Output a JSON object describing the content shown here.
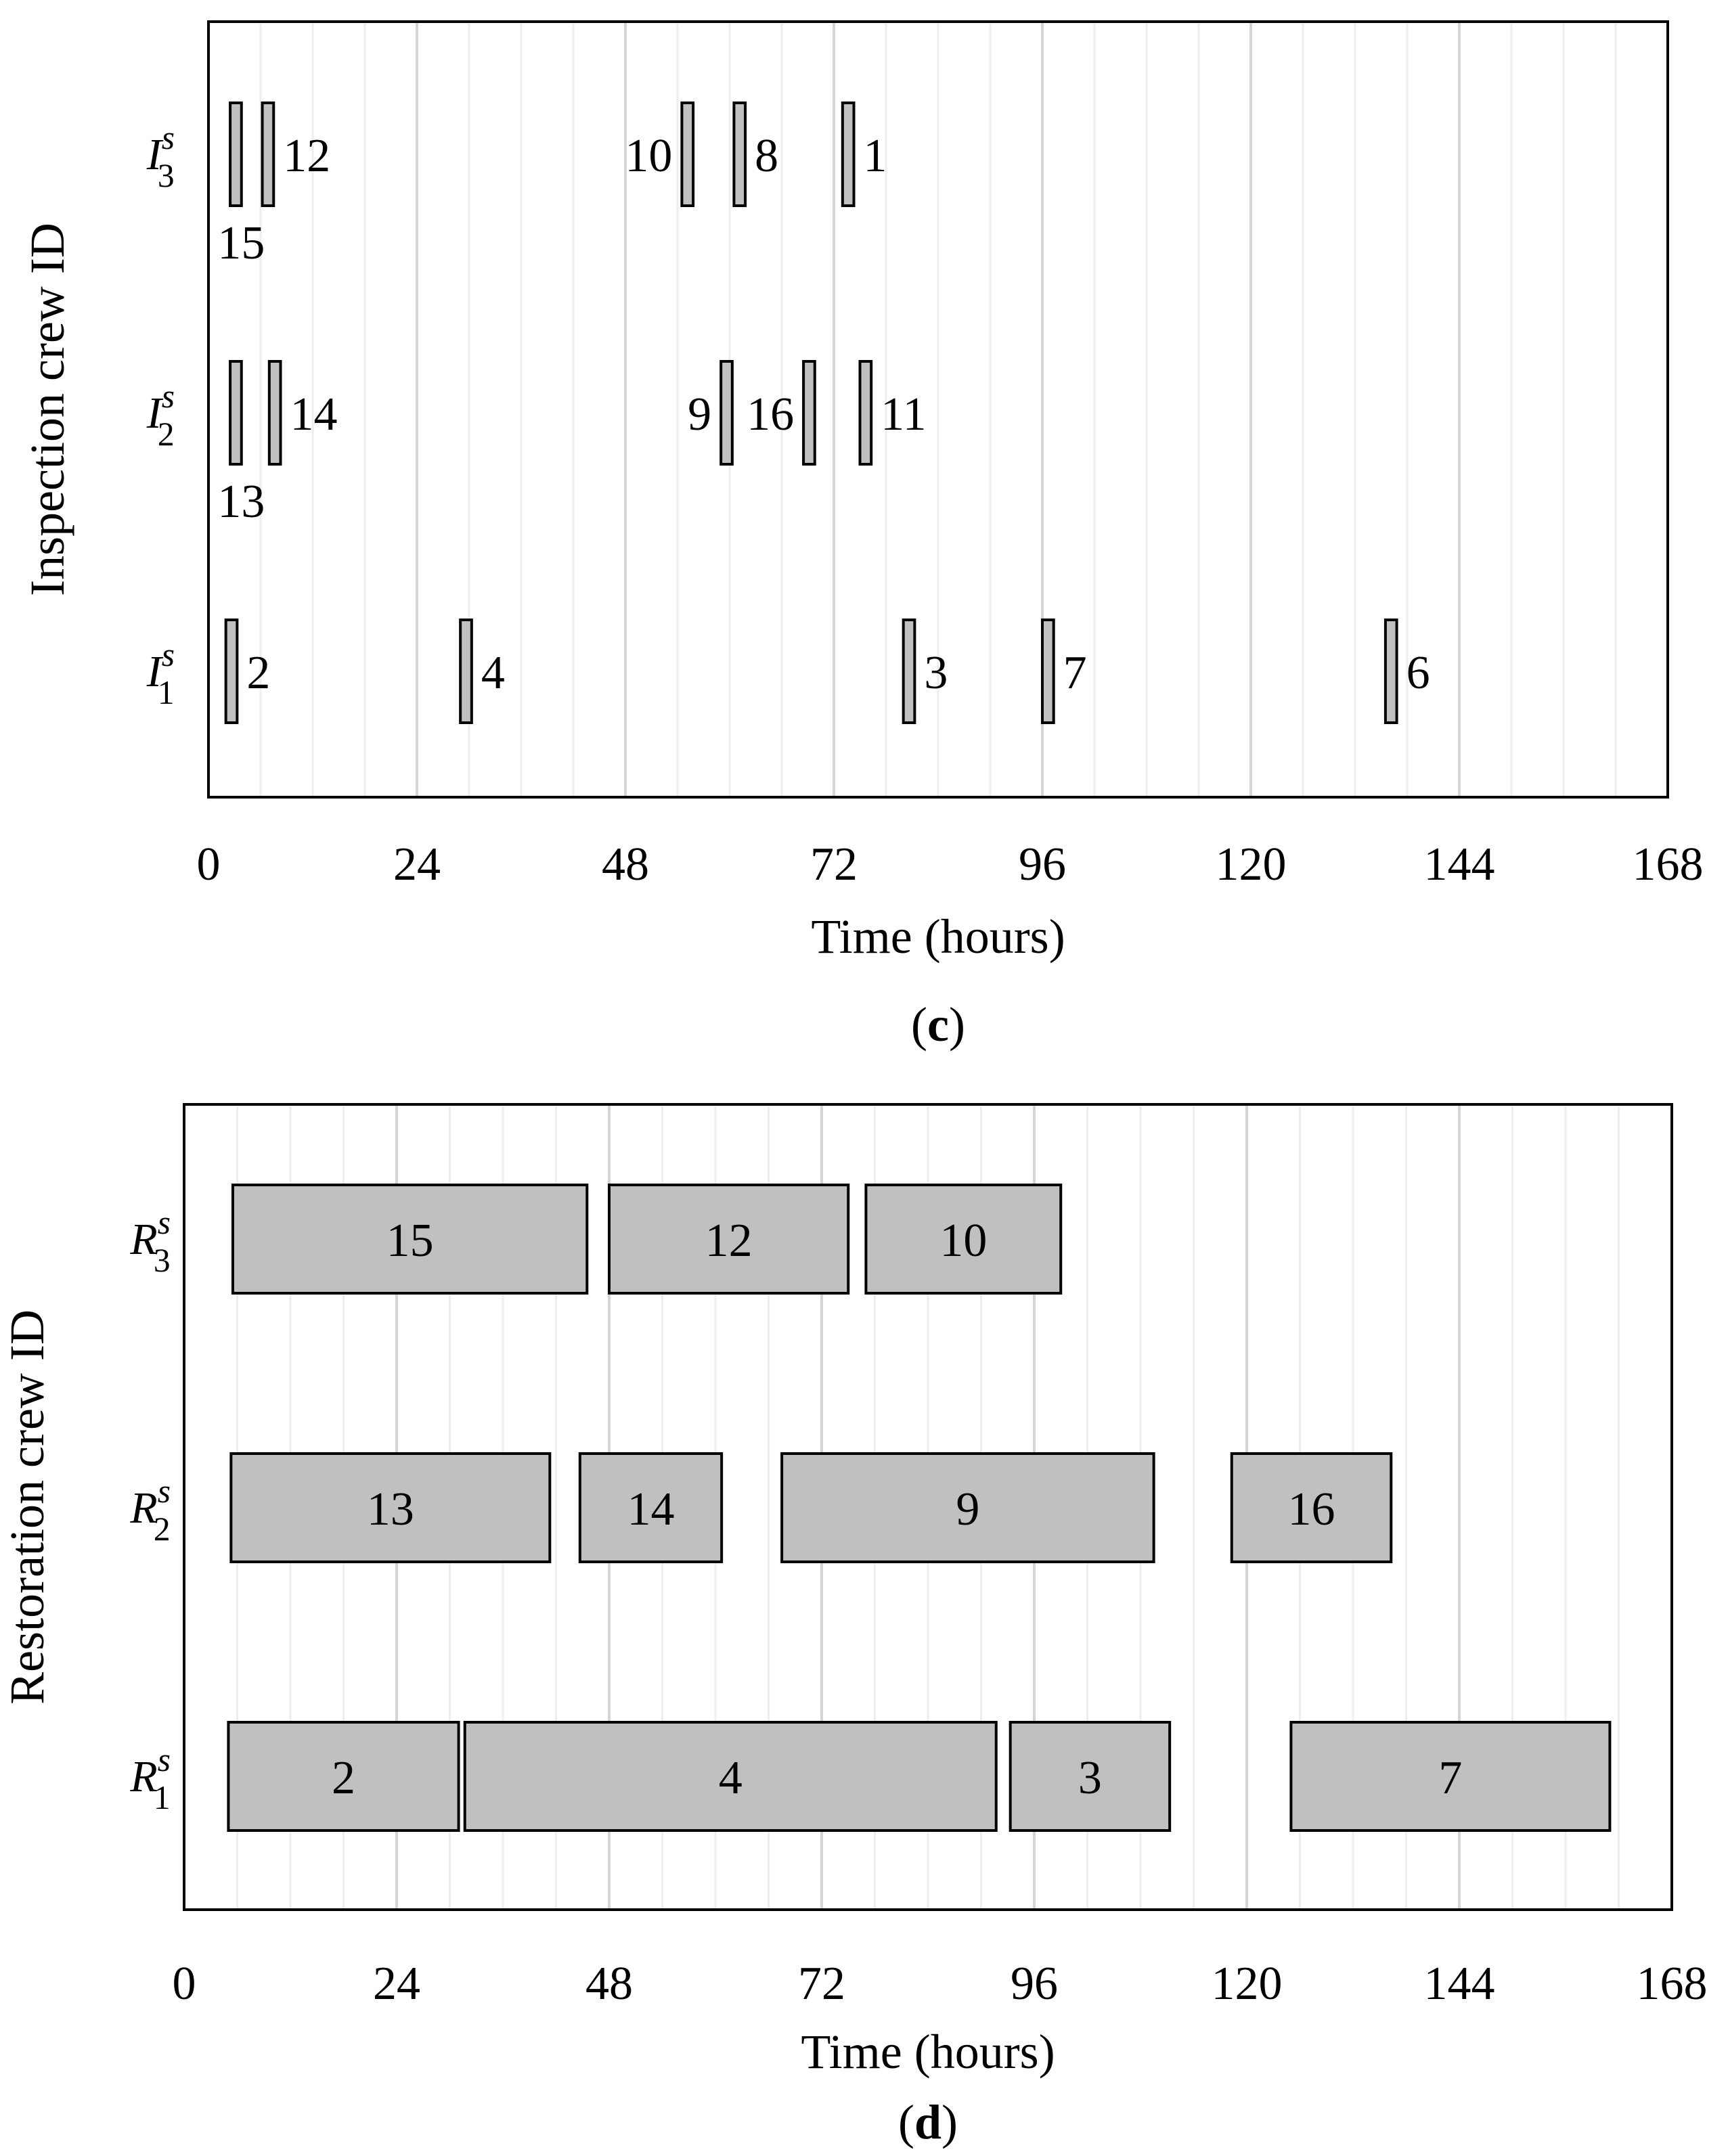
{
  "colors": {
    "bar_fill": "#c0c0c0",
    "bar_stroke": "#000000",
    "grid_major": "#d4d4d4",
    "grid_minor": "#eeeeee",
    "frame": "#000000"
  },
  "chart_data": [
    {
      "id": "c",
      "type": "gantt",
      "panel_label": "c",
      "xlabel": "Time (hours)",
      "ylabel": "Inspection crew ID",
      "xlim": [
        0,
        168
      ],
      "xticks": [
        "0",
        "24",
        "48",
        "72",
        "96",
        "120",
        "144",
        "168"
      ],
      "major_grid_step": 24,
      "minor_grid_step": 6,
      "crews": [
        {
          "base": "I",
          "sub": "3",
          "sup": "s",
          "tasks": [
            {
              "id": "15",
              "start": 2.5,
              "end": 3.8,
              "label_pos": "below"
            },
            {
              "id": "12",
              "start": 6.2,
              "end": 7.5,
              "label_pos": "right"
            },
            {
              "id": "10",
              "start": 54.5,
              "end": 55.8,
              "label_pos": "left"
            },
            {
              "id": "8",
              "start": 60.5,
              "end": 61.8,
              "label_pos": "right"
            },
            {
              "id": "1",
              "start": 73.0,
              "end": 74.3,
              "label_pos": "right"
            }
          ]
        },
        {
          "base": "I",
          "sub": "2",
          "sup": "s",
          "tasks": [
            {
              "id": "13",
              "start": 2.5,
              "end": 3.8,
              "label_pos": "below"
            },
            {
              "id": "14",
              "start": 7.0,
              "end": 8.3,
              "label_pos": "right"
            },
            {
              "id": "9",
              "start": 59.0,
              "end": 60.3,
              "label_pos": "left"
            },
            {
              "id": "16",
              "start": 68.5,
              "end": 69.8,
              "label_pos": "left"
            },
            {
              "id": "11",
              "start": 75.0,
              "end": 76.3,
              "label_pos": "right"
            }
          ]
        },
        {
          "base": "I",
          "sub": "1",
          "sup": "s",
          "tasks": [
            {
              "id": "2",
              "start": 2.0,
              "end": 3.3,
              "label_pos": "right"
            },
            {
              "id": "4",
              "start": 29.0,
              "end": 30.3,
              "label_pos": "right"
            },
            {
              "id": "3",
              "start": 80.0,
              "end": 81.3,
              "label_pos": "right"
            },
            {
              "id": "7",
              "start": 96.0,
              "end": 97.3,
              "label_pos": "right"
            },
            {
              "id": "6",
              "start": 135.5,
              "end": 136.8,
              "label_pos": "right"
            }
          ]
        }
      ]
    },
    {
      "id": "d",
      "type": "gantt",
      "panel_label": "d",
      "xlabel": "Time (hours)",
      "ylabel": "Restoration crew ID",
      "xlim": [
        0,
        168
      ],
      "xticks": [
        "0",
        "24",
        "48",
        "72",
        "96",
        "120",
        "144",
        "168"
      ],
      "major_grid_step": 24,
      "minor_grid_step": 6,
      "crews": [
        {
          "base": "R",
          "sub": "3",
          "sup": "s",
          "tasks": [
            {
              "id": "15",
              "start": 5.5,
              "end": 45.5,
              "label_pos": "center"
            },
            {
              "id": "12",
              "start": 48.0,
              "end": 75.0,
              "label_pos": "center"
            },
            {
              "id": "10",
              "start": 77.0,
              "end": 99.0,
              "label_pos": "center"
            }
          ]
        },
        {
          "base": "R",
          "sub": "2",
          "sup": "s",
          "tasks": [
            {
              "id": "13",
              "start": 5.3,
              "end": 41.3,
              "label_pos": "center"
            },
            {
              "id": "14",
              "start": 44.7,
              "end": 60.7,
              "label_pos": "center"
            },
            {
              "id": "9",
              "start": 67.5,
              "end": 109.5,
              "label_pos": "center"
            },
            {
              "id": "16",
              "start": 118.3,
              "end": 136.3,
              "label_pos": "center"
            }
          ]
        },
        {
          "base": "R",
          "sub": "1",
          "sup": "s",
          "tasks": [
            {
              "id": "2",
              "start": 5.0,
              "end": 31.0,
              "label_pos": "center"
            },
            {
              "id": "4",
              "start": 31.7,
              "end": 91.7,
              "label_pos": "center"
            },
            {
              "id": "3",
              "start": 93.3,
              "end": 111.3,
              "label_pos": "center"
            },
            {
              "id": "7",
              "start": 125.0,
              "end": 161.0,
              "label_pos": "center"
            }
          ]
        }
      ]
    }
  ]
}
